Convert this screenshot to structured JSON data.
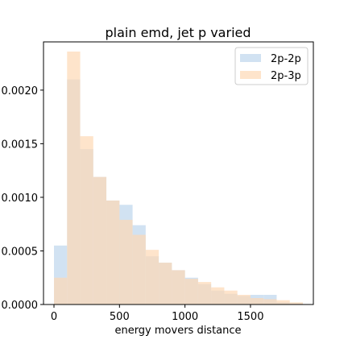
{
  "chart_data": {
    "type": "histogram",
    "title": "plain emd, jet p varied",
    "xlabel": "energy movers distance",
    "ylabel": "",
    "xlim": [
      -80,
      1980
    ],
    "ylim": [
      0,
      0.00245
    ],
    "x_ticks": [
      0,
      500,
      1000,
      1500
    ],
    "x_tick_labels": [
      "0",
      "500",
      "1000",
      "1500"
    ],
    "y_ticks": [
      0,
      0.0005,
      0.001,
      0.0015,
      0.002
    ],
    "y_tick_labels": [
      "0.0000",
      "0.0005",
      "0.0010",
      "0.0015",
      "0.0020"
    ],
    "legend_position": "top-right",
    "bin_edges": [
      0,
      100,
      200,
      300,
      400,
      500,
      600,
      700,
      800,
      900,
      1000,
      1100,
      1200,
      1300,
      1400,
      1500,
      1600,
      1700,
      1800,
      1900
    ],
    "series": [
      {
        "name": "2p-2p",
        "color": "#c6dbef",
        "opacity": 0.8,
        "values": [
          0.00055,
          0.0021,
          0.00145,
          0.00119,
          0.00097,
          0.00093,
          0.00074,
          0.00045,
          0.00039,
          0.00032,
          0.00025,
          0.00019,
          0.00013,
          0.0001,
          8e-05,
          9e-05,
          9e-05,
          2e-05,
          1e-05
        ]
      },
      {
        "name": "2p-3p",
        "color": "#fdd9b5",
        "opacity": 0.7,
        "values": [
          0.00025,
          0.00236,
          0.00157,
          0.00119,
          0.00097,
          0.00079,
          0.00065,
          0.00051,
          0.00039,
          0.00032,
          0.00024,
          0.00021,
          0.00016,
          0.00013,
          9e-05,
          6e-05,
          5e-05,
          4e-05,
          2e-05
        ]
      }
    ]
  }
}
